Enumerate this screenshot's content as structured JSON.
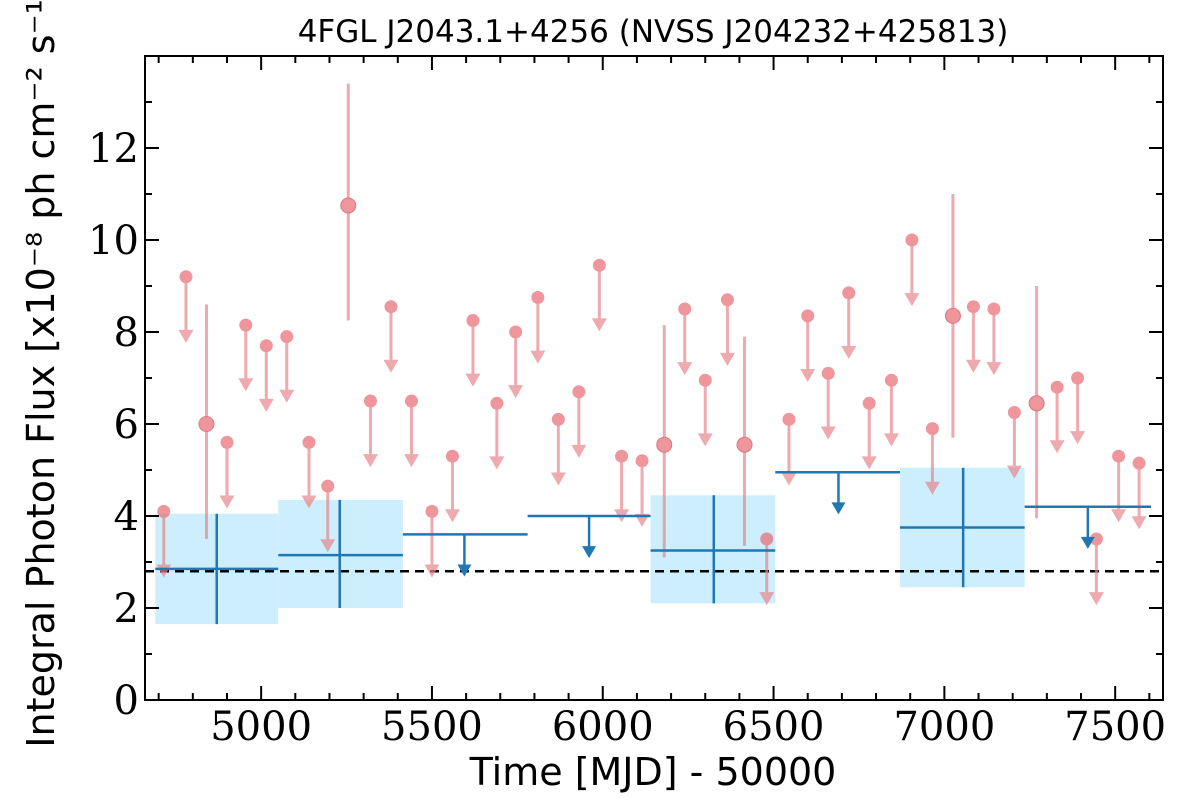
{
  "chart_data": {
    "type": "scatter",
    "title": "4FGL J2043.1+4256 (NVSS J204232+425813)",
    "xlabel": "Time [MJD] - 50000",
    "ylabel": "Integral Photon Flux [x10⁻⁸ ph cm⁻² s⁻¹]",
    "xlim": [
      4660,
      7640
    ],
    "ylim": [
      0,
      14
    ],
    "xticks": [
      5000,
      5500,
      6000,
      6500,
      7000,
      7500
    ],
    "yticks": [
      0,
      2,
      4,
      6,
      8,
      10,
      12
    ],
    "mean_flux_line": 2.8,
    "colors": {
      "fine_points": "#e8878c",
      "fine_marker": "#e86a73",
      "coarse_bins": "#1f77b4",
      "coarse_band": "#cdeefc",
      "mean_line": "#000000"
    },
    "series": [
      {
        "marker": "circle",
        "points": [
          {
            "x": 4840,
            "y": 6.0,
            "ylo": 3.5,
            "yhi": 8.6
          },
          {
            "x": 5255,
            "y": 10.75,
            "ylo": 8.25,
            "yhi": 13.4
          },
          {
            "x": 6180,
            "y": 5.55,
            "ylo": 3.1,
            "yhi": 8.15
          },
          {
            "x": 6415,
            "y": 5.55,
            "ylo": 3.35,
            "yhi": 7.9
          },
          {
            "x": 7025,
            "y": 8.35,
            "ylo": 5.7,
            "yhi": 11.0
          },
          {
            "x": 7270,
            "y": 6.45,
            "ylo": 3.95,
            "yhi": 9.0
          }
        ],
        "upper_limits": [
          {
            "x": 4715,
            "y": 4.1
          },
          {
            "x": 4780,
            "y": 9.2
          },
          {
            "x": 4900,
            "y": 5.6
          },
          {
            "x": 4955,
            "y": 8.15
          },
          {
            "x": 5015,
            "y": 7.7
          },
          {
            "x": 5075,
            "y": 7.9
          },
          {
            "x": 5140,
            "y": 5.6
          },
          {
            "x": 5195,
            "y": 4.65
          },
          {
            "x": 5320,
            "y": 6.5
          },
          {
            "x": 5380,
            "y": 8.55
          },
          {
            "x": 5440,
            "y": 6.5
          },
          {
            "x": 5500,
            "y": 4.1
          },
          {
            "x": 5560,
            "y": 5.3
          },
          {
            "x": 5620,
            "y": 8.25
          },
          {
            "x": 5690,
            "y": 6.45
          },
          {
            "x": 5745,
            "y": 8.0
          },
          {
            "x": 5810,
            "y": 8.75
          },
          {
            "x": 5870,
            "y": 6.1
          },
          {
            "x": 5930,
            "y": 6.7
          },
          {
            "x": 5990,
            "y": 9.45
          },
          {
            "x": 6055,
            "y": 5.3
          },
          {
            "x": 6115,
            "y": 5.2
          },
          {
            "x": 6240,
            "y": 8.5
          },
          {
            "x": 6300,
            "y": 6.95
          },
          {
            "x": 6365,
            "y": 8.7
          },
          {
            "x": 6480,
            "y": 3.5
          },
          {
            "x": 6545,
            "y": 6.1
          },
          {
            "x": 6600,
            "y": 8.35
          },
          {
            "x": 6660,
            "y": 7.1
          },
          {
            "x": 6720,
            "y": 8.85
          },
          {
            "x": 6780,
            "y": 6.45
          },
          {
            "x": 6845,
            "y": 6.95
          },
          {
            "x": 6905,
            "y": 10.0
          },
          {
            "x": 6965,
            "y": 5.9
          },
          {
            "x": 7085,
            "y": 8.55
          },
          {
            "x": 7145,
            "y": 8.5
          },
          {
            "x": 7205,
            "y": 6.25
          },
          {
            "x": 7330,
            "y": 6.8
          },
          {
            "x": 7390,
            "y": 7.0
          },
          {
            "x": 7445,
            "y": 3.5
          },
          {
            "x": 7510,
            "y": 5.3
          },
          {
            "x": 7570,
            "y": 5.15
          }
        ]
      },
      {
        "marker": "bin",
        "bins": [
          {
            "x0": 4690,
            "x1": 5050,
            "xc": 4870,
            "y": 2.85,
            "ylo": 1.65,
            "yhi": 4.05
          },
          {
            "x0": 5050,
            "x1": 5415,
            "xc": 5230,
            "y": 3.15,
            "ylo": 2.0,
            "yhi": 4.35
          },
          {
            "x0": 6140,
            "x1": 6505,
            "xc": 6325,
            "y": 3.25,
            "ylo": 2.1,
            "yhi": 4.45
          },
          {
            "x0": 6870,
            "x1": 7235,
            "xc": 7055,
            "y": 3.75,
            "ylo": 2.45,
            "yhi": 5.05
          }
        ],
        "upper_limits": [
          {
            "x0": 5415,
            "x1": 5780,
            "xc": 5595,
            "y": 3.6
          },
          {
            "x0": 5780,
            "x1": 6140,
            "xc": 5960,
            "y": 4.0
          },
          {
            "x0": 6505,
            "x1": 6870,
            "xc": 6690,
            "y": 4.95
          },
          {
            "x0": 7235,
            "x1": 7605,
            "xc": 7420,
            "y": 4.2
          }
        ]
      }
    ]
  }
}
